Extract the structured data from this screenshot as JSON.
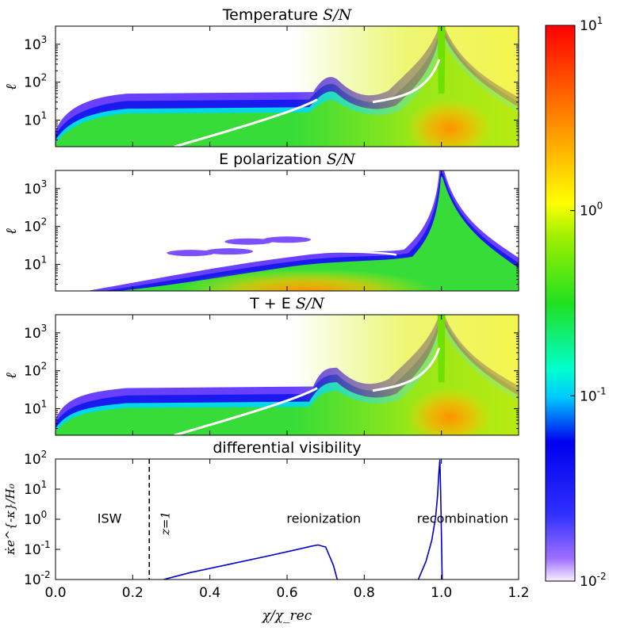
{
  "chart_data": [
    {
      "type": "heatmap",
      "title": "Temperature",
      "title_math": "S/N",
      "ylabel": "ℓ",
      "yscale": "log",
      "ylim": [
        2,
        3000
      ],
      "xlim": [
        0,
        1.2
      ],
      "yticks": [
        {
          "value": 10,
          "mantissa": "10",
          "exp": "1"
        },
        {
          "value": 100,
          "mantissa": "10",
          "exp": "2"
        },
        {
          "value": 1000,
          "mantissa": "10",
          "exp": "3"
        }
      ],
      "features": {
        "low_band_top": 60,
        "peak": {
          "x": 0.71,
          "l": 150
        },
        "recomb": {
          "x": 1.0
        },
        "high_region": {
          "x": 1.02,
          "l": 6
        }
      }
    },
    {
      "type": "heatmap",
      "title": "E polarization",
      "title_math": "S/N",
      "ylabel": "ℓ",
      "yscale": "log",
      "ylim": [
        2,
        3000
      ],
      "xlim": [
        0,
        1.2
      ],
      "yticks": [
        {
          "value": 10,
          "mantissa": "10",
          "exp": "1"
        },
        {
          "value": 100,
          "mantissa": "10",
          "exp": "2"
        },
        {
          "value": 1000,
          "mantissa": "10",
          "exp": "3"
        }
      ],
      "features": {
        "band_from_x": 0.1,
        "recomb": {
          "x": 1.0
        },
        "high_region": {
          "x": 0.8,
          "l": 3
        }
      }
    },
    {
      "type": "heatmap",
      "title": "T + E",
      "title_math": "S/N",
      "ylabel": "ℓ",
      "yscale": "log",
      "ylim": [
        2,
        3000
      ],
      "xlim": [
        0,
        1.2
      ],
      "yticks": [
        {
          "value": 10,
          "mantissa": "10",
          "exp": "1"
        },
        {
          "value": 100,
          "mantissa": "10",
          "exp": "2"
        },
        {
          "value": 1000,
          "mantissa": "10",
          "exp": "3"
        }
      ],
      "features": {
        "low_band_top": 40,
        "peak": {
          "x": 0.71,
          "l": 120
        },
        "recomb": {
          "x": 1.0
        },
        "high_region": {
          "x": 1.02,
          "l": 6
        }
      }
    },
    {
      "type": "line",
      "title": "differential visibility",
      "ylabel_math": "κ̇e^{-κ}/H₀",
      "xlabel_math": "χ/χ_rec",
      "yscale": "log",
      "ylim": [
        0.01,
        100
      ],
      "xlim": [
        0,
        1.2
      ],
      "xticks": [
        "0.0",
        "0.2",
        "0.4",
        "0.6",
        "0.8",
        "1.0",
        "1.2"
      ],
      "yticks": [
        {
          "value": 0.01,
          "mantissa": "10",
          "exp": "-2"
        },
        {
          "value": 0.1,
          "mantissa": "10",
          "exp": "-1"
        },
        {
          "value": 1,
          "mantissa": "10",
          "exp": "0"
        },
        {
          "value": 10,
          "mantissa": "10",
          "exp": "1"
        },
        {
          "value": 100,
          "mantissa": "10",
          "exp": "2"
        }
      ],
      "series": [
        {
          "name": "visibility",
          "color": "#0000cc",
          "x": [
            0.28,
            0.35,
            0.45,
            0.55,
            0.62,
            0.66,
            0.68,
            0.7,
            0.72,
            0.73
          ],
          "y": [
            0.01,
            0.017,
            0.032,
            0.06,
            0.095,
            0.125,
            0.14,
            0.12,
            0.03,
            0.01
          ]
        },
        {
          "name": "recombination",
          "color": "#0000cc",
          "x": [
            0.94,
            0.96,
            0.975,
            0.985,
            0.99,
            0.993,
            0.996,
            0.998,
            1.0,
            1.002
          ],
          "y": [
            0.01,
            0.04,
            0.2,
            1.2,
            6,
            30,
            95,
            8,
            0.3,
            0.01
          ]
        }
      ],
      "vline": {
        "x": 0.243,
        "style": "dashed",
        "label": "z=1"
      },
      "annotations": [
        {
          "text": "ISW",
          "x": 0.14,
          "y": 1.1
        },
        {
          "text": "reionization",
          "x": 0.695,
          "y": 1.1
        },
        {
          "text": "recombination",
          "x": 1.055,
          "y": 1.1
        }
      ]
    }
  ],
  "colorbar": {
    "scale": "log",
    "range": [
      0.01,
      10
    ],
    "ticks": [
      {
        "value": 0.01,
        "mantissa": "10",
        "exp": "-2"
      },
      {
        "value": 0.1,
        "mantissa": "10",
        "exp": "-1"
      },
      {
        "value": 1,
        "mantissa": "10",
        "exp": "0"
      },
      {
        "value": 10,
        "mantissa": "10",
        "exp": "1"
      }
    ],
    "stops": [
      {
        "v": 0.0,
        "color": "#f8f0ff"
      },
      {
        "v": 0.04,
        "color": "#a070ff"
      },
      {
        "v": 0.12,
        "color": "#3030ff"
      },
      {
        "v": 0.25,
        "color": "#0000ee"
      },
      {
        "v": 0.33,
        "color": "#00c8ff"
      },
      {
        "v": 0.38,
        "color": "#00ffd0"
      },
      {
        "v": 0.5,
        "color": "#20e020"
      },
      {
        "v": 0.62,
        "color": "#a0f000"
      },
      {
        "v": 0.68,
        "color": "#ffff00"
      },
      {
        "v": 0.8,
        "color": "#ffa000"
      },
      {
        "v": 1.0,
        "color": "#ff0000"
      }
    ]
  }
}
